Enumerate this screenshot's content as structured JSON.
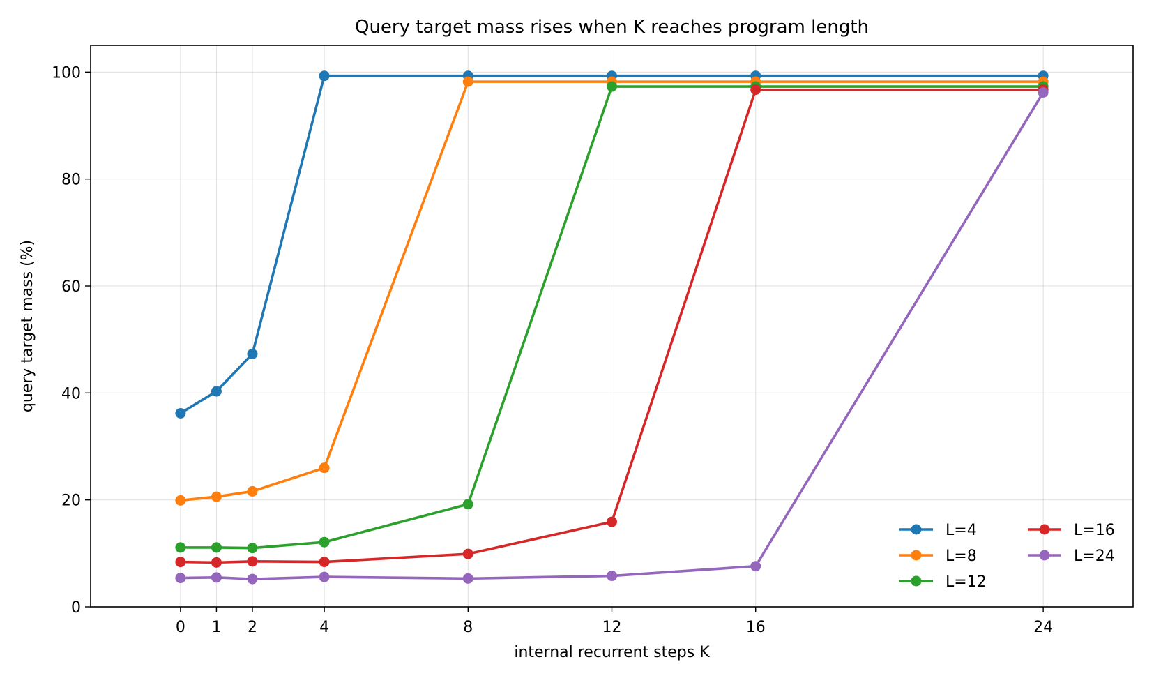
{
  "chart_data": {
    "type": "line",
    "title": "Query target mass rises when K reaches program length",
    "xlabel": "internal recurrent steps K",
    "ylabel": "query target mass (%)",
    "x": [
      0,
      1,
      2,
      4,
      8,
      12,
      16,
      24
    ],
    "xticks": [
      0,
      1,
      2,
      4,
      8,
      12,
      16,
      24
    ],
    "yticks": [
      0,
      20,
      40,
      60,
      80,
      100
    ],
    "xlim": [
      -2.5,
      26.5
    ],
    "ylim": [
      0,
      105
    ],
    "grid": true,
    "legend_position": "lower-right",
    "legend_columns": 2,
    "series": [
      {
        "name": "L=4",
        "color": "#1f77b4",
        "x": [
          0,
          1,
          2,
          4,
          8,
          12,
          16,
          24
        ],
        "values": [
          36.2,
          40.3,
          47.3,
          99.3,
          99.3,
          99.3,
          99.3,
          99.3
        ]
      },
      {
        "name": "L=8",
        "color": "#ff7f0e",
        "x": [
          0,
          1,
          2,
          4,
          8,
          12,
          16,
          24
        ],
        "values": [
          19.9,
          20.6,
          21.6,
          26.0,
          98.2,
          98.2,
          98.2,
          98.2
        ]
      },
      {
        "name": "L=12",
        "color": "#2ca02c",
        "x": [
          0,
          1,
          2,
          4,
          8,
          12,
          16,
          24
        ],
        "values": [
          11.1,
          11.1,
          11.0,
          12.1,
          19.2,
          97.3,
          97.3,
          97.3
        ]
      },
      {
        "name": "L=16",
        "color": "#d62728",
        "x": [
          0,
          1,
          2,
          4,
          8,
          12,
          16,
          24
        ],
        "values": [
          8.4,
          8.3,
          8.5,
          8.4,
          9.9,
          15.9,
          96.7,
          96.7
        ]
      },
      {
        "name": "L=24",
        "color": "#9467bd",
        "x": [
          0,
          1,
          2,
          4,
          8,
          12,
          16,
          24
        ],
        "values": [
          5.4,
          5.5,
          5.2,
          5.6,
          5.3,
          5.8,
          7.6,
          96.2
        ]
      }
    ]
  }
}
